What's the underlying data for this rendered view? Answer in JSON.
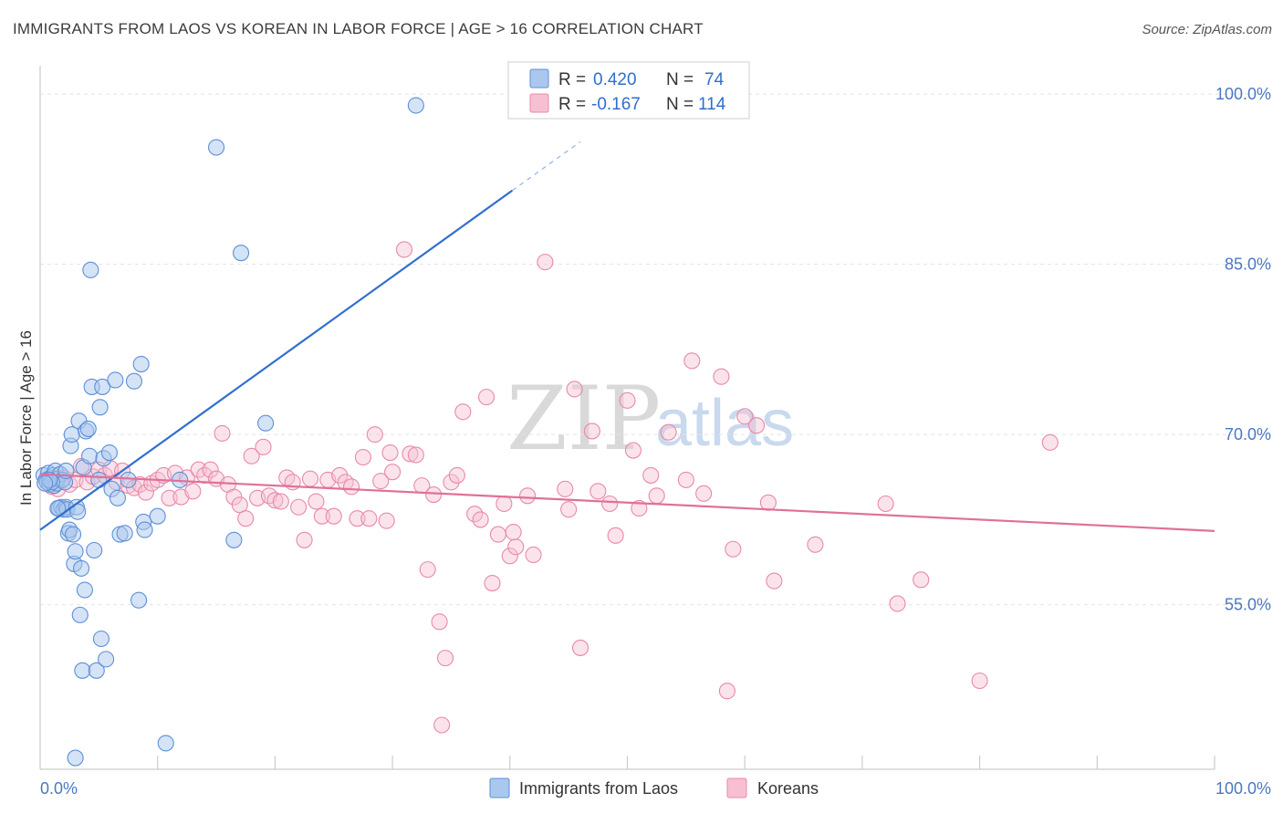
{
  "header": {
    "title": "IMMIGRANTS FROM LAOS VS KOREAN IN LABOR FORCE | AGE > 16 CORRELATION CHART",
    "source": "Source: ZipAtlas.com"
  },
  "watermark": {
    "zip": "ZIP",
    "atlas": "atlas"
  },
  "legend": {
    "rows": [
      {
        "r_label": "R =",
        "r_value": "0.420",
        "n_label": "N =",
        "n_value": "74"
      },
      {
        "r_label": "R =",
        "r_value": "-0.167",
        "n_label": "N =",
        "n_value": "114"
      }
    ]
  },
  "bottom_legend": [
    "Immigrants from Laos",
    "Koreans"
  ],
  "colors": {
    "blue_fill": "#aac8ee",
    "blue_stroke": "#5f8fd6",
    "blue_line": "#2f6fd0",
    "pink_fill": "#f7c0d2",
    "pink_stroke": "#e889aa",
    "pink_line": "#e0709a"
  },
  "chart_data": {
    "type": "scatter",
    "title": "IMMIGRANTS FROM LAOS VS KOREAN IN LABOR FORCE | AGE > 16 CORRELATION CHART",
    "xlabel": "",
    "ylabel": "In Labor Force | Age > 16",
    "xlim": [
      0,
      100
    ],
    "ylim": [
      40.5,
      102.5
    ],
    "x_tick_labels": [
      "0.0%",
      "100.0%"
    ],
    "y_ticks": [
      55,
      70,
      85,
      100
    ],
    "y_tick_labels": [
      "55.0%",
      "70.0%",
      "85.0%",
      "100.0%"
    ],
    "series": [
      {
        "name": "Immigrants from Laos",
        "R": 0.42,
        "N": 74,
        "trend": {
          "x0": 0,
          "y0": 61.6,
          "x1": 40.2,
          "y1": 91.5,
          "x_dash_end": 46,
          "y_dash_end": 95.8
        },
        "points": [
          [
            0.3,
            66.4
          ],
          [
            0.5,
            66.0
          ],
          [
            0.6,
            65.8
          ],
          [
            0.7,
            66.6
          ],
          [
            0.8,
            65.6
          ],
          [
            0.9,
            66.2
          ],
          [
            1.0,
            65.9
          ],
          [
            1.1,
            66.4
          ],
          [
            1.2,
            65.5
          ],
          [
            1.3,
            66.8
          ],
          [
            1.4,
            65.7
          ],
          [
            1.5,
            66.1
          ],
          [
            1.6,
            63.5
          ],
          [
            1.7,
            66.5
          ],
          [
            1.8,
            63.6
          ],
          [
            1.9,
            66.0
          ],
          [
            2.0,
            63.4
          ],
          [
            2.1,
            65.8
          ],
          [
            2.2,
            63.6
          ],
          [
            2.3,
            63.4
          ],
          [
            2.4,
            61.3
          ],
          [
            2.5,
            61.6
          ],
          [
            2.6,
            69.0
          ],
          [
            2.7,
            70.0
          ],
          [
            2.8,
            61.2
          ],
          [
            2.9,
            58.6
          ],
          [
            3.0,
            59.7
          ],
          [
            3.1,
            63.6
          ],
          [
            3.2,
            63.2
          ],
          [
            3.3,
            71.2
          ],
          [
            3.4,
            54.1
          ],
          [
            3.5,
            58.2
          ],
          [
            3.6,
            49.2
          ],
          [
            3.7,
            67.1
          ],
          [
            3.8,
            56.3
          ],
          [
            3.9,
            70.3
          ],
          [
            4.1,
            70.5
          ],
          [
            4.2,
            68.1
          ],
          [
            4.3,
            84.5
          ],
          [
            4.4,
            74.2
          ],
          [
            4.6,
            59.8
          ],
          [
            4.8,
            49.2
          ],
          [
            5.0,
            66.0
          ],
          [
            5.1,
            72.4
          ],
          [
            5.2,
            52.0
          ],
          [
            5.3,
            74.2
          ],
          [
            5.4,
            67.9
          ],
          [
            5.6,
            50.2
          ],
          [
            5.9,
            68.4
          ],
          [
            6.1,
            65.2
          ],
          [
            6.4,
            74.8
          ],
          [
            6.6,
            64.4
          ],
          [
            6.8,
            61.2
          ],
          [
            7.2,
            61.3
          ],
          [
            7.5,
            66.0
          ],
          [
            8.0,
            74.7
          ],
          [
            8.4,
            55.4
          ],
          [
            8.6,
            76.2
          ],
          [
            8.8,
            62.3
          ],
          [
            8.9,
            61.6
          ],
          [
            10.0,
            62.8
          ],
          [
            10.7,
            42.8
          ],
          [
            11.9,
            66.0
          ],
          [
            15.0,
            95.3
          ],
          [
            16.5,
            60.7
          ],
          [
            17.1,
            86.0
          ],
          [
            19.2,
            71.0
          ],
          [
            32.0,
            99.0
          ],
          [
            1.0,
            65.8
          ],
          [
            2.2,
            66.8
          ],
          [
            3.0,
            41.5
          ],
          [
            0.8,
            66.0
          ],
          [
            1.5,
            63.5
          ],
          [
            0.4,
            65.7
          ]
        ]
      },
      {
        "name": "Koreans",
        "R": -0.167,
        "N": 114,
        "trend": {
          "x0": 0,
          "y0": 66.5,
          "x1": 100,
          "y1": 61.5
        },
        "points": [
          [
            1.0,
            65.4
          ],
          [
            1.5,
            65.2
          ],
          [
            2.0,
            66.2
          ],
          [
            2.5,
            65.6
          ],
          [
            3.0,
            66.0
          ],
          [
            3.5,
            67.2
          ],
          [
            4.0,
            65.8
          ],
          [
            4.5,
            66.3
          ],
          [
            5.0,
            66.9
          ],
          [
            5.5,
            66.4
          ],
          [
            6.0,
            67.0
          ],
          [
            6.5,
            65.8
          ],
          [
            7.0,
            66.8
          ],
          [
            7.5,
            65.5
          ],
          [
            8.0,
            65.3
          ],
          [
            8.5,
            65.6
          ],
          [
            9.0,
            64.9
          ],
          [
            9.5,
            65.7
          ],
          [
            10.0,
            66.0
          ],
          [
            10.5,
            66.4
          ],
          [
            11.0,
            64.4
          ],
          [
            11.5,
            66.6
          ],
          [
            12.0,
            64.5
          ],
          [
            12.5,
            66.2
          ],
          [
            13.0,
            65.0
          ],
          [
            13.5,
            66.9
          ],
          [
            14.0,
            66.4
          ],
          [
            14.5,
            66.9
          ],
          [
            15.0,
            66.1
          ],
          [
            15.5,
            70.1
          ],
          [
            16.0,
            65.6
          ],
          [
            16.5,
            64.5
          ],
          [
            17.0,
            63.8
          ],
          [
            17.5,
            62.6
          ],
          [
            18.0,
            68.1
          ],
          [
            18.5,
            64.4
          ],
          [
            19.0,
            68.9
          ],
          [
            19.5,
            64.6
          ],
          [
            20.0,
            64.2
          ],
          [
            20.5,
            64.1
          ],
          [
            21.0,
            66.2
          ],
          [
            21.5,
            65.8
          ],
          [
            22.0,
            63.6
          ],
          [
            22.5,
            60.7
          ],
          [
            23.0,
            66.1
          ],
          [
            23.5,
            64.1
          ],
          [
            24.0,
            62.8
          ],
          [
            24.5,
            66.0
          ],
          [
            25.0,
            62.8
          ],
          [
            25.5,
            66.4
          ],
          [
            26.0,
            65.8
          ],
          [
            26.5,
            65.4
          ],
          [
            27.0,
            62.6
          ],
          [
            27.5,
            68.0
          ],
          [
            28.0,
            62.6
          ],
          [
            28.5,
            70.0
          ],
          [
            29.0,
            65.9
          ],
          [
            29.5,
            62.4
          ],
          [
            30.0,
            66.7
          ],
          [
            31.0,
            86.3
          ],
          [
            31.5,
            68.3
          ],
          [
            32.0,
            68.2
          ],
          [
            32.5,
            65.5
          ],
          [
            33.0,
            58.1
          ],
          [
            33.5,
            64.7
          ],
          [
            34.0,
            53.5
          ],
          [
            34.5,
            50.3
          ],
          [
            35.0,
            65.8
          ],
          [
            35.5,
            66.4
          ],
          [
            36.0,
            72.0
          ],
          [
            37.0,
            63.0
          ],
          [
            37.5,
            62.5
          ],
          [
            38.0,
            73.3
          ],
          [
            38.5,
            56.9
          ],
          [
            39.0,
            61.2
          ],
          [
            39.5,
            63.9
          ],
          [
            40.0,
            59.3
          ],
          [
            40.5,
            60.1
          ],
          [
            41.5,
            64.6
          ],
          [
            42.0,
            59.4
          ],
          [
            43.0,
            85.2
          ],
          [
            45.0,
            63.4
          ],
          [
            45.5,
            74.0
          ],
          [
            46.0,
            51.2
          ],
          [
            47.0,
            70.3
          ],
          [
            47.5,
            65.0
          ],
          [
            48.5,
            63.9
          ],
          [
            49.0,
            61.1
          ],
          [
            50.0,
            73.0
          ],
          [
            50.5,
            68.6
          ],
          [
            51.0,
            63.5
          ],
          [
            52.0,
            66.4
          ],
          [
            52.5,
            64.6
          ],
          [
            53.5,
            70.2
          ],
          [
            55.0,
            66.0
          ],
          [
            55.5,
            76.5
          ],
          [
            56.5,
            64.8
          ],
          [
            58.0,
            75.1
          ],
          [
            58.5,
            47.4
          ],
          [
            59.0,
            59.9
          ],
          [
            60.0,
            71.6
          ],
          [
            61.0,
            70.8
          ],
          [
            62.0,
            64.0
          ],
          [
            62.5,
            57.1
          ],
          [
            66.0,
            60.3
          ],
          [
            72.0,
            63.9
          ],
          [
            73.0,
            55.1
          ],
          [
            75.0,
            57.2
          ],
          [
            80.0,
            48.3
          ],
          [
            86.0,
            69.3
          ],
          [
            34.2,
            44.4
          ],
          [
            40.3,
            61.4
          ],
          [
            29.8,
            68.4
          ],
          [
            44.7,
            65.2
          ]
        ]
      }
    ]
  }
}
